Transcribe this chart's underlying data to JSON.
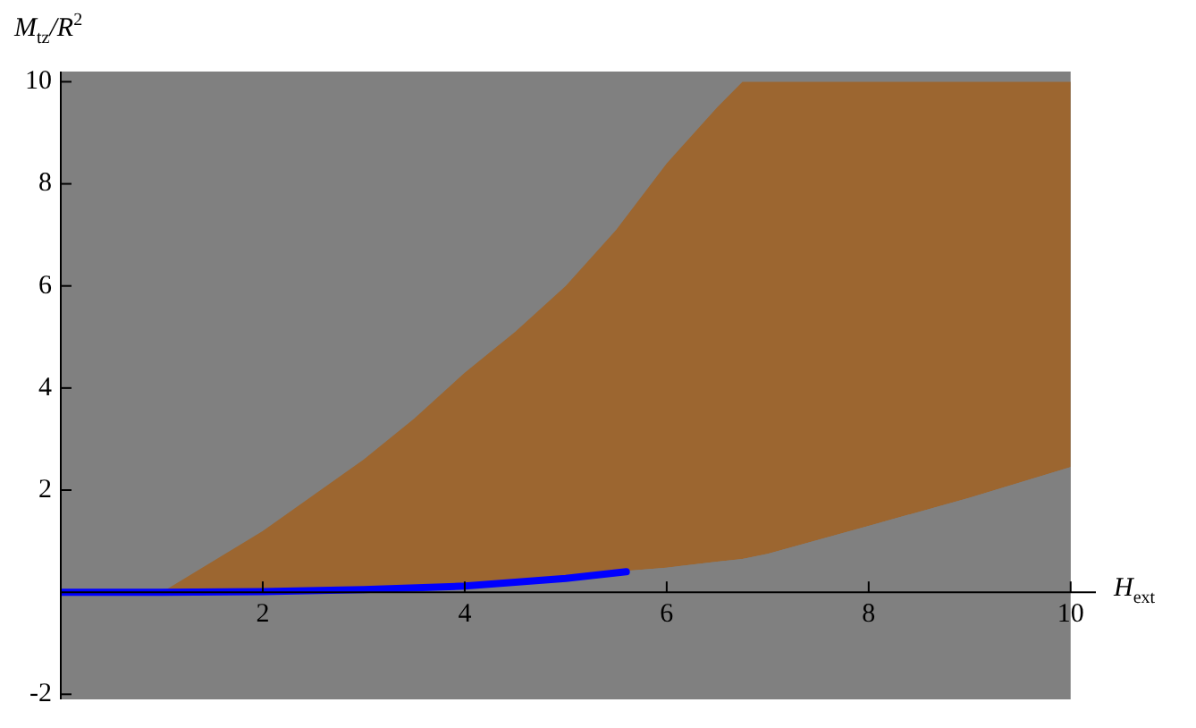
{
  "chart_data": {
    "type": "area",
    "xlabel": "H$_{ext}$",
    "ylabel": "M$_{tz}$/R$^{2}$",
    "stacked": true,
    "xlim": [
      0,
      10.25
    ],
    "ylim": [
      -2.1,
      10.2
    ],
    "xticks": [
      2,
      4,
      6,
      8,
      10
    ],
    "yticks": [
      -2,
      2,
      4,
      6,
      8,
      10
    ],
    "grid": false,
    "legend": false,
    "marker": "none",
    "bands": [
      {
        "axis": "x",
        "from": 0,
        "to": 10,
        "color": "#808080"
      }
    ],
    "series": [
      {
        "color": "#808080",
        "x": [
          1,
          1.5,
          2,
          2.5,
          3,
          3.5,
          4,
          4.5,
          5,
          5.5,
          6,
          6.5,
          6.75,
          7,
          8,
          9,
          10
        ],
        "values": [
          0,
          0,
          0,
          0.02,
          0.05,
          0.08,
          0.12,
          0.2,
          0.28,
          0.4,
          0.48,
          0.6,
          0.65,
          0.75,
          1.3,
          1.85,
          2.45
        ]
      },
      {
        "color": "#9c6630",
        "x": [
          1,
          1.5,
          2,
          2.5,
          3,
          3.5,
          4,
          4.5,
          5,
          5.5,
          6,
          6.5,
          6.75,
          7,
          8,
          9,
          10
        ],
        "values": [
          0,
          0.6,
          1.2,
          1.88,
          2.55,
          3.32,
          4.18,
          4.9,
          5.72,
          6.7,
          7.92,
          8.9,
          9.35,
          9.25,
          8.7,
          8.15,
          7.55
        ]
      },
      {
        "type": "line",
        "color": "#0000ff",
        "x": [
          0,
          1,
          2,
          3,
          4,
          5,
          5.6
        ],
        "values": [
          0,
          0,
          0.01,
          0.05,
          0.12,
          0.27,
          0.4
        ]
      }
    ]
  }
}
